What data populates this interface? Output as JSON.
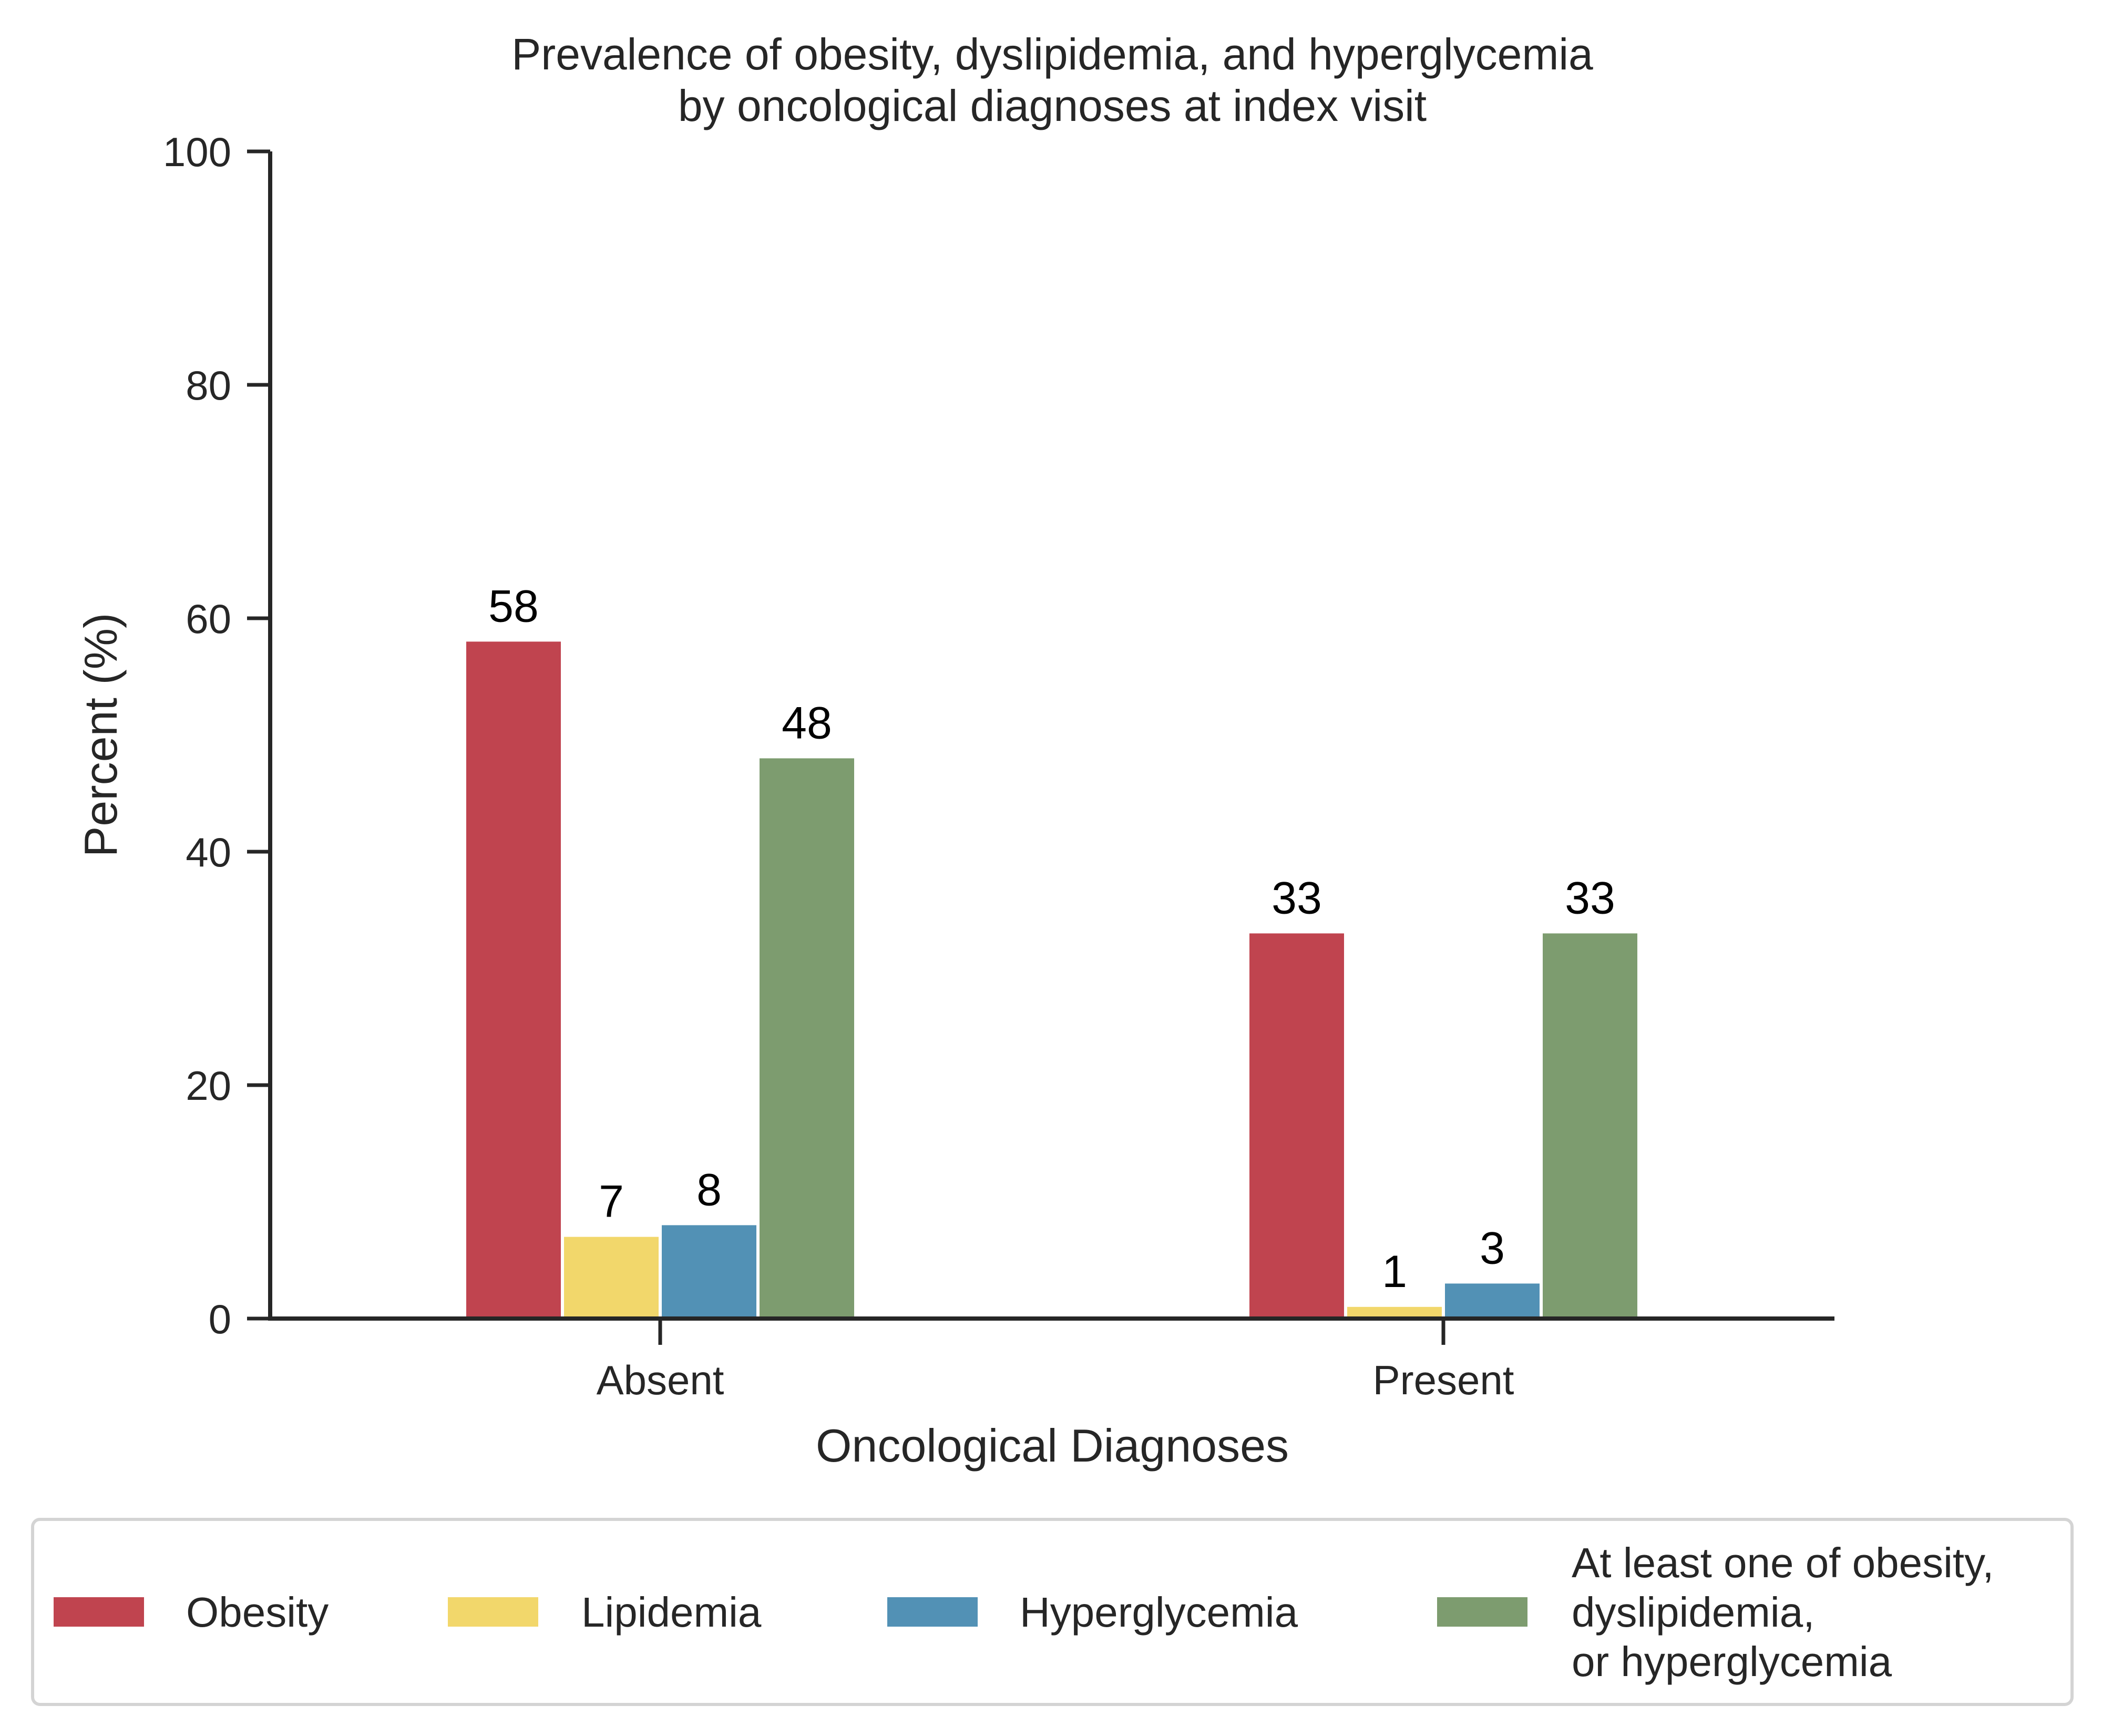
{
  "chart_data": {
    "type": "bar",
    "title": [
      "Prevalence of obesity, dyslipidemia, and hyperglycemia",
      "by oncological diagnoses at index visit"
    ],
    "xlabel": "Oncological Diagnoses",
    "ylabel": "Percent (%)",
    "categories": [
      "Absent",
      "Present"
    ],
    "ylim": [
      0,
      100
    ],
    "yticks": [
      0,
      20,
      40,
      60,
      80,
      100
    ],
    "grid": false,
    "legend_position": "bottom",
    "series": [
      {
        "name": "Obesity",
        "values": [
          58,
          33
        ],
        "labels": [
          "58",
          "33"
        ],
        "color": "#c0444f"
      },
      {
        "name": "Lipidemia",
        "values": [
          7,
          1
        ],
        "labels": [
          "7",
          "1"
        ],
        "color": "#f2d76b"
      },
      {
        "name": "Hyperglycemia",
        "values": [
          8,
          3
        ],
        "labels": [
          "8",
          "3"
        ],
        "color": "#5291b5"
      },
      {
        "name": "At least one of obesity, dyslipidemia, or hyperglycemia",
        "legend_lines": [
          "At least one of obesity,",
          "dyslipidemia,",
          "or hyperglycemia"
        ],
        "values": [
          48,
          33
        ],
        "labels": [
          "48",
          "33"
        ],
        "color": "#7d9c6f"
      }
    ]
  }
}
